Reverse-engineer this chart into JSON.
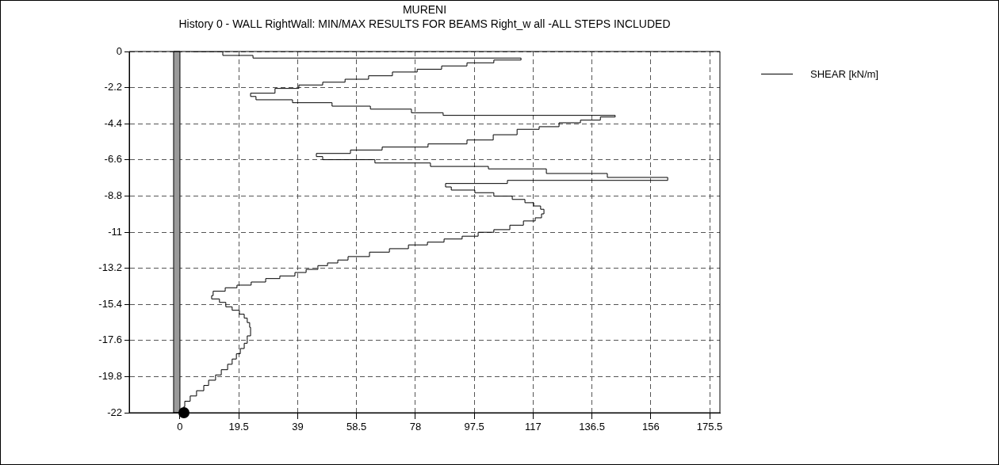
{
  "chart_data": {
    "type": "step",
    "title": "MURENI",
    "subtitle": "History 0 - WALL RightWall: MIN/MAX RESULTS FOR BEAMS Right_w all -ALL STEPS INCLUDED",
    "series": [
      {
        "name": "SHEAR [kN/m]",
        "color": "#000000",
        "x": [
          3.7,
          14.2,
          24.2,
          113,
          104,
          95.1,
          86.7,
          78.6,
          70.4,
          62.5,
          54.7,
          47.3,
          39.4,
          31.5,
          23.4,
          25.2,
          37.3,
          50.4,
          63.1,
          76.7,
          87.2,
          144.2,
          139.3,
          132.7,
          125.6,
          119,
          111.7,
          103.8,
          95.1,
          82.2,
          67,
          56.5,
          45.2,
          47.3,
          64.6,
          83,
          102.2,
          121.4,
          141.6,
          161.6,
          108.5,
          88,
          89.9,
          97.7,
          104,
          110.1,
          114.3,
          117.2,
          119.5,
          120.6,
          119.8,
          117.7,
          113.8,
          109.3,
          104,
          98.8,
          93.5,
          87.5,
          82,
          75.7,
          69.4,
          62.8,
          55.7,
          52.3,
          48.9,
          45.7,
          41.8,
          38.1,
          33.1,
          28.4,
          23.6,
          18.9,
          15,
          11,
          10.5,
          13.1,
          15.2,
          17.3,
          19.7,
          21.3,
          22.3,
          23.1,
          23.4,
          22.3,
          21.3,
          20,
          18.7,
          17.3,
          15.8,
          13.7,
          11.8,
          9.5,
          7.9,
          5.5,
          3.4,
          1.6,
          1.3
        ],
        "values": [
          0,
          -0.24,
          -0.4,
          -0.52,
          -0.69,
          -0.88,
          -1.08,
          -1.25,
          -1.48,
          -1.69,
          -1.87,
          -2.04,
          -2.25,
          -2.54,
          -2.74,
          -2.94,
          -3.12,
          -3.33,
          -3.51,
          -3.73,
          -3.89,
          -3.99,
          -4.18,
          -4.34,
          -4.58,
          -4.74,
          -5.07,
          -5.39,
          -5.63,
          -5.82,
          -6.0,
          -6.21,
          -6.4,
          -6.59,
          -6.79,
          -7.0,
          -7.15,
          -7.43,
          -7.67,
          -7.85,
          -8.04,
          -8.25,
          -8.44,
          -8.6,
          -8.81,
          -9.01,
          -9.21,
          -9.41,
          -9.61,
          -9.89,
          -10.13,
          -10.32,
          -10.58,
          -10.85,
          -11.01,
          -11.25,
          -11.42,
          -11.61,
          -11.78,
          -12.01,
          -12.22,
          -12.49,
          -12.7,
          -12.88,
          -13.04,
          -13.27,
          -13.46,
          -13.67,
          -13.83,
          -14.04,
          -14.23,
          -14.39,
          -14.6,
          -14.87,
          -15.07,
          -15.28,
          -15.55,
          -15.76,
          -16.0,
          -16.24,
          -16.51,
          -16.8,
          -17.32,
          -17.77,
          -18.09,
          -18.41,
          -18.73,
          -19.05,
          -19.38,
          -19.7,
          -20.02,
          -20.34,
          -20.66,
          -20.98,
          -21.3,
          -21.63,
          -22
        ]
      }
    ],
    "xlim": [
      -16.8,
      178.9
    ],
    "xticks": [
      0,
      19.5,
      39,
      58.5,
      78,
      97.5,
      117,
      136.5,
      156,
      175.5
    ],
    "ylim": [
      -22,
      0
    ],
    "yticks": [
      0,
      -2.2,
      -4.4,
      -6.6,
      -8.8,
      -11,
      -13.2,
      -15.4,
      -17.6,
      -19.8,
      -22
    ],
    "bands": [
      {
        "axis": "x",
        "from": -2.1,
        "to": 0,
        "color": "#9a9a9a"
      }
    ],
    "grid": true,
    "legend": "right",
    "marker": "none",
    "line_style": "solid"
  }
}
